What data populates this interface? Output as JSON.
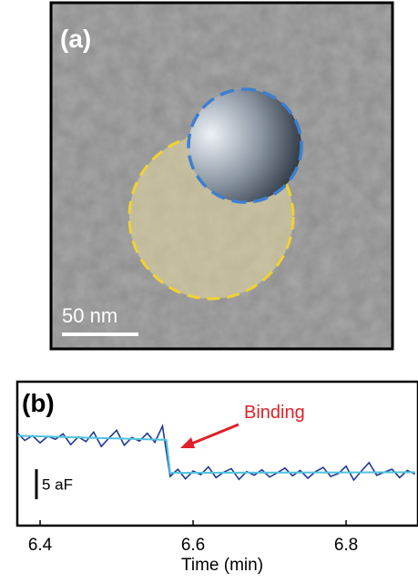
{
  "panel_a": {
    "label": "(a)",
    "scale_bar": "50 nm"
  },
  "chart_data": {
    "type": "line",
    "panel_label": "(b)",
    "xlabel": "Time (min)",
    "annotation": "Binding",
    "scale_bar": {
      "value": 5,
      "label": "5 aF"
    },
    "xlim": [
      6.369,
      6.894
    ],
    "xticks": [
      6.4,
      6.6,
      6.8
    ],
    "ylim": [
      -12,
      12
    ],
    "grid": false,
    "series": [
      {
        "color": "#1f3a93",
        "x": [
          6.37,
          6.38,
          6.39,
          6.4,
          6.41,
          6.42,
          6.43,
          6.44,
          6.45,
          6.46,
          6.47,
          6.48,
          6.49,
          6.5,
          6.51,
          6.52,
          6.53,
          6.54,
          6.55,
          6.56,
          6.57,
          6.58,
          6.59,
          6.6,
          6.61,
          6.62,
          6.63,
          6.64,
          6.65,
          6.66,
          6.67,
          6.68,
          6.69,
          6.7,
          6.71,
          6.72,
          6.73,
          6.74,
          6.75,
          6.76,
          6.77,
          6.78,
          6.79,
          6.8,
          6.81,
          6.82,
          6.83,
          6.84,
          6.85,
          6.86,
          6.87,
          6.88,
          6.89
        ],
        "values": [
          3.5,
          2.2,
          3.0,
          1.8,
          2.9,
          2.4,
          3.3,
          1.5,
          2.8,
          2.0,
          3.6,
          1.2,
          2.6,
          3.9,
          1.4,
          2.7,
          2.1,
          3.4,
          1.9,
          4.6,
          -3.8,
          -2.6,
          -4.2,
          -2.9,
          -3.5,
          -2.2,
          -4.0,
          -3.1,
          -2.5,
          -4.3,
          -3.0,
          -3.6,
          -2.7,
          -3.9,
          -3.2,
          -2.4,
          -3.7,
          -2.8,
          -4.1,
          -3.0,
          -2.3,
          -3.8,
          -3.3,
          -2.1,
          -4.4,
          -2.9,
          -1.5,
          -3.6,
          -3.1,
          -2.6,
          -4.0,
          -2.8,
          -3.4
        ]
      },
      {
        "color": "#4fc3e0",
        "x": [
          6.37,
          6.565,
          6.57,
          6.89
        ],
        "values": [
          3.0,
          2.3,
          -3.2,
          -3.1
        ]
      }
    ]
  }
}
